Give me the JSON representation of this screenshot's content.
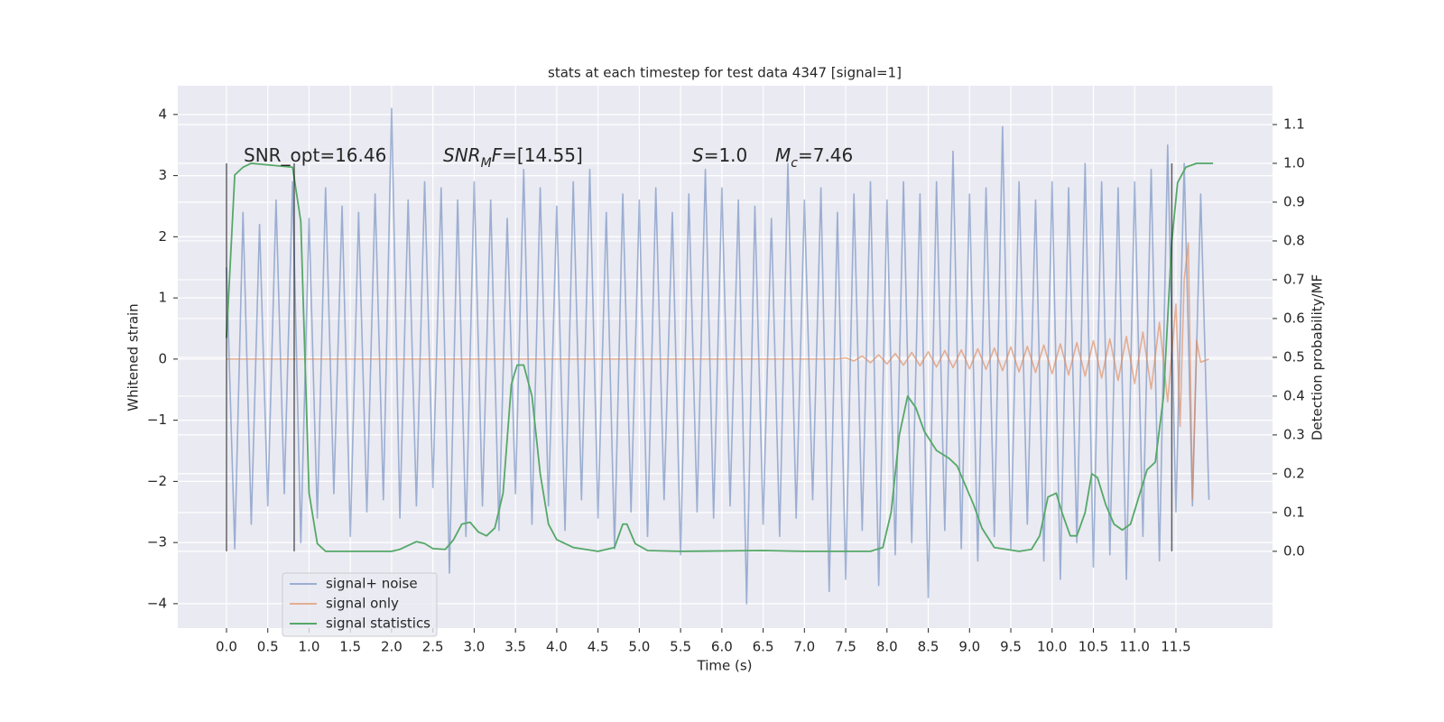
{
  "chart_data": {
    "type": "line",
    "title": "stats at each timestep for test data 4347 [signal=1]",
    "xlabel": "Time (s)",
    "ylabel": "Whitened strain",
    "y2label": "Detection probability/MF",
    "xlim": [
      -0.59,
      12.67
    ],
    "ylim": [
      -4.4,
      4.47
    ],
    "y2lim": [
      -0.198,
      1.2
    ],
    "xticks": [
      {
        "value": 0,
        "label": "0.0"
      },
      0.5,
      {
        "value": 1,
        "label": "1.0"
      },
      1.5,
      {
        "value": 2,
        "label": "2.0"
      },
      2.5,
      {
        "value": 3,
        "label": "3.0"
      },
      3.5,
      {
        "value": 4,
        "label": "4.0"
      },
      4.5,
      {
        "value": 5,
        "label": "5.0"
      },
      5.5,
      {
        "value": 6,
        "label": "6.0"
      },
      6.5,
      {
        "value": 7,
        "label": "7.0"
      },
      7.5,
      {
        "value": 8,
        "label": "8.0"
      },
      8.5,
      {
        "value": 9,
        "label": "9.0"
      },
      9.5,
      {
        "value": 10,
        "label": "10.0"
      },
      10.5,
      {
        "value": 11,
        "label": "11.0"
      },
      11.5
    ],
    "yticks": [
      {
        "value": -4,
        "label": "−4"
      },
      {
        "value": -3,
        "label": "−3"
      },
      {
        "value": -2,
        "label": "−2"
      },
      {
        "value": -1,
        "label": "−1"
      },
      0,
      1,
      2,
      3,
      4
    ],
    "y2ticks": [
      {
        "value": 0,
        "label": "0.0"
      },
      0.1,
      0.2,
      0.3,
      0.4,
      0.5,
      0.6,
      0.7,
      0.8,
      0.9,
      {
        "value": 1,
        "label": "1.0"
      },
      1.1
    ],
    "grid": true,
    "legend": "lower left",
    "series": [
      {
        "name": "signal+ noise",
        "color": "#4c72b0",
        "opacity": 0.5,
        "x": [
          0,
          0.1,
          0.2,
          0.3,
          0.4,
          0.5,
          0.6,
          0.7,
          0.8,
          0.9,
          1,
          1.1,
          1.2,
          1.3,
          1.4,
          1.5,
          1.6,
          1.7,
          1.8,
          1.9,
          2,
          2.1,
          2.2,
          2.3,
          2.4,
          2.5,
          2.6,
          2.7,
          2.8,
          2.9,
          3,
          3.1,
          3.2,
          3.3,
          3.4,
          3.5,
          3.6,
          3.7,
          3.8,
          3.9,
          4,
          4.1,
          4.2,
          4.3,
          4.4,
          4.5,
          4.6,
          4.7,
          4.8,
          4.9,
          5,
          5.1,
          5.2,
          5.3,
          5.4,
          5.5,
          5.6,
          5.7,
          5.8,
          5.9,
          6,
          6.1,
          6.2,
          6.3,
          6.4,
          6.5,
          6.6,
          6.7,
          6.8,
          6.9,
          7,
          7.1,
          7.2,
          7.3,
          7.4,
          7.5,
          7.6,
          7.7,
          7.8,
          7.9,
          8,
          8.1,
          8.2,
          8.3,
          8.4,
          8.5,
          8.6,
          8.7,
          8.8,
          8.9,
          9,
          9.1,
          9.2,
          9.3,
          9.4,
          9.5,
          9.6,
          9.7,
          9.8,
          9.9,
          10,
          10.1,
          10.2,
          10.3,
          10.4,
          10.5,
          10.6,
          10.7,
          10.8,
          10.9,
          11,
          11.1,
          11.2,
          11.3,
          11.4,
          11.5,
          11.6,
          11.7,
          11.8,
          11.9
        ],
        "values": [
          1.5,
          -3.1,
          2.4,
          -2.7,
          2.2,
          -2.4,
          2.6,
          -2.2,
          2.9,
          -3.0,
          2.3,
          -2.6,
          2.8,
          -2.2,
          2.5,
          -2.9,
          2.4,
          -2.5,
          2.7,
          -2.3,
          4.1,
          -2.6,
          2.6,
          -2.4,
          2.9,
          -2.1,
          2.8,
          -3.5,
          2.6,
          -2.9,
          2.9,
          -2.4,
          2.6,
          -2.8,
          2.3,
          -2.2,
          3.1,
          -2.7,
          2.8,
          -2.4,
          2.5,
          -2.8,
          2.9,
          -2.3,
          3.1,
          -2.6,
          2.4,
          -3.1,
          2.7,
          -2.5,
          2.6,
          -2.9,
          2.8,
          -2.3,
          2.4,
          -3.2,
          2.7,
          -2.5,
          3.1,
          -2.6,
          2.8,
          -2.4,
          2.6,
          -4.0,
          2.5,
          -2.7,
          2.3,
          -2.9,
          3.2,
          -2.6,
          2.6,
          -2.3,
          2.8,
          -3.8,
          2.4,
          -3.6,
          2.7,
          -2.8,
          2.9,
          -3.7,
          2.6,
          -3.2,
          2.9,
          -3.0,
          2.7,
          -3.9,
          2.9,
          -2.8,
          3.4,
          -3.1,
          2.7,
          -3.3,
          2.8,
          -2.9,
          3.8,
          -3.1,
          2.9,
          -2.7,
          2.6,
          -3.3,
          2.9,
          -3.6,
          2.8,
          -3.0,
          3.2,
          -3.4,
          2.9,
          -3.2,
          2.8,
          -3.6,
          2.9,
          -2.9,
          3.1,
          -3.3,
          3.5,
          -2.5,
          3.2,
          -2.4,
          2.7,
          -2.3
        ]
      },
      {
        "name": "signal only",
        "color": "#dd8452",
        "opacity": 0.6,
        "x": [
          0,
          7.4,
          7.5,
          7.6,
          7.7,
          7.8,
          7.9,
          8,
          8.1,
          8.2,
          8.3,
          8.4,
          8.5,
          8.6,
          8.7,
          8.8,
          8.9,
          9,
          9.1,
          9.2,
          9.3,
          9.4,
          9.5,
          9.6,
          9.7,
          9.8,
          9.9,
          10,
          10.1,
          10.2,
          10.3,
          10.4,
          10.5,
          10.6,
          10.7,
          10.8,
          10.9,
          11,
          11.1,
          11.2,
          11.3,
          11.4,
          11.5,
          11.55,
          11.6,
          11.65,
          11.7,
          11.75,
          11.8,
          11.9
        ],
        "values": [
          0,
          0,
          0.02,
          -0.03,
          0.05,
          -0.06,
          0.07,
          -0.08,
          0.09,
          -0.1,
          0.11,
          -0.11,
          0.12,
          -0.13,
          0.14,
          -0.14,
          0.15,
          -0.16,
          0.17,
          -0.17,
          0.18,
          -0.19,
          0.2,
          -0.21,
          0.21,
          -0.22,
          0.23,
          -0.24,
          0.25,
          -0.26,
          0.27,
          -0.28,
          0.3,
          -0.31,
          0.33,
          -0.35,
          0.37,
          -0.4,
          0.44,
          -0.49,
          0.6,
          -0.7,
          0.9,
          -1.1,
          1.3,
          1.9,
          -2.3,
          0.3,
          -0.05,
          0
        ]
      },
      {
        "name": "signal statistics",
        "color": "#55a868",
        "axis": "y2",
        "x": [
          0,
          0.1,
          0.2,
          0.3,
          0.8,
          0.9,
          0.95,
          1,
          1.1,
          1.2,
          2,
          2.1,
          2.3,
          2.4,
          2.5,
          2.65,
          2.75,
          2.85,
          2.95,
          3.05,
          3.15,
          3.25,
          3.35,
          3.45,
          3.52,
          3.6,
          3.7,
          3.8,
          3.9,
          4,
          4.2,
          4.5,
          4.7,
          4.8,
          4.85,
          4.95,
          5.1,
          5.5,
          6.5,
          7,
          7.8,
          7.95,
          8.05,
          8.15,
          8.25,
          8.35,
          8.45,
          8.6,
          8.75,
          8.85,
          8.95,
          9.05,
          9.15,
          9.3,
          9.6,
          9.75,
          9.85,
          9.95,
          10.05,
          10.12,
          10.22,
          10.3,
          10.4,
          10.48,
          10.55,
          10.65,
          10.75,
          10.85,
          10.95,
          11.05,
          11.15,
          11.25,
          11.35,
          11.45,
          11.52,
          11.62,
          11.75,
          11.95
        ],
        "values": [
          0.55,
          0.97,
          0.99,
          1,
          0.99,
          0.85,
          0.5,
          0.15,
          0.02,
          0,
          0,
          0.005,
          0.025,
          0.02,
          0.007,
          0.005,
          0.03,
          0.07,
          0.075,
          0.05,
          0.04,
          0.06,
          0.15,
          0.43,
          0.48,
          0.48,
          0.4,
          0.2,
          0.07,
          0.03,
          0.01,
          0,
          0.01,
          0.07,
          0.07,
          0.02,
          0.002,
          0,
          0.002,
          0,
          0,
          0.01,
          0.1,
          0.3,
          0.4,
          0.37,
          0.31,
          0.26,
          0.24,
          0.22,
          0.17,
          0.12,
          0.06,
          0.01,
          0,
          0.005,
          0.04,
          0.14,
          0.15,
          0.1,
          0.04,
          0.04,
          0.1,
          0.2,
          0.19,
          0.12,
          0.07,
          0.055,
          0.07,
          0.14,
          0.21,
          0.23,
          0.4,
          0.8,
          0.95,
          0.99,
          1,
          1
        ]
      }
    ],
    "vlines": {
      "x": [
        0,
        0.82,
        11.45
      ],
      "ymin": 0,
      "ymax": 1,
      "axis": "y2",
      "color": "#000000",
      "opacity": 0.6
    },
    "annotations": [
      {
        "parts": [
          {
            "text": "SNR_opt=16.46"
          }
        ]
      },
      {
        "parts": [
          {
            "text": "SNR",
            "italic": true
          },
          {
            "text": "M",
            "italic": true,
            "sub": true
          },
          {
            "text": "F",
            "italic": true
          },
          {
            "text": "=[14.55]"
          }
        ]
      },
      {
        "parts": [
          {
            "text": "S",
            "italic": true
          },
          {
            "text": "=1.0"
          }
        ]
      },
      {
        "parts": [
          {
            "text": "M",
            "italic": true
          },
          {
            "text": "c",
            "italic": true,
            "sub": true
          },
          {
            "text": "=7.46"
          }
        ]
      }
    ]
  }
}
